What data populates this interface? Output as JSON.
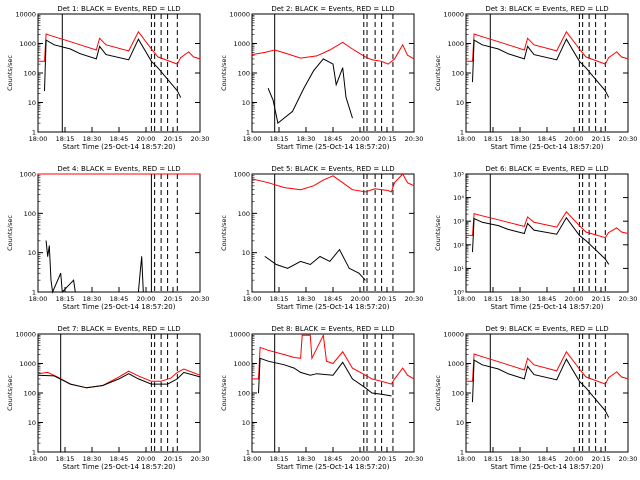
{
  "chart_data": [
    {
      "type": "line",
      "title": "Det 1: BLACK = Events, RED = LLD",
      "xlabel": "Start Time (25-Oct-14 18:57:20)",
      "ylabel": "Counts/sec",
      "yscale": "log",
      "ylim": [
        1,
        10000
      ],
      "yticks": [
        1,
        10,
        100,
        1000,
        10000
      ],
      "yticklabels": [
        "1",
        "10",
        "100",
        "1000",
        "10000"
      ],
      "xticklabels": [
        "18:00",
        "18:15",
        "18:30",
        "18:45",
        "20:00",
        "20:15",
        "20:30"
      ],
      "series": [
        {
          "color": "#ff0000",
          "x": [
            0,
            4,
            5,
            10,
            20,
            26,
            36,
            38,
            42,
            56,
            62,
            70,
            74,
            86,
            88,
            93,
            96,
            100
          ],
          "y": [
            250,
            250,
            2100,
            1700,
            1150,
            900,
            600,
            1500,
            900,
            560,
            2500,
            650,
            350,
            200,
            330,
            520,
            350,
            300
          ]
        },
        {
          "color": "#000000",
          "x": [
            4,
            5,
            10,
            20,
            26,
            36,
            38,
            42,
            56,
            62,
            70,
            74,
            86,
            88
          ],
          "y": [
            25,
            1300,
            900,
            650,
            450,
            300,
            800,
            420,
            280,
            1400,
            250,
            150,
            25,
            15
          ]
        }
      ],
      "vlines": [
        15,
        70,
        72,
        76,
        80,
        86
      ]
    },
    {
      "type": "line",
      "title": "Det 2: BLACK = Events, RED = LLD",
      "xlabel": "Start Time (25-Oct-14 18:57:20)",
      "ylabel": "Counts/sec",
      "yscale": "log",
      "ylim": [
        1,
        10000
      ],
      "yticks": [
        1,
        10,
        100,
        1000,
        10000
      ],
      "yticklabels": [
        "1",
        "10",
        "100",
        "1000",
        "10000"
      ],
      "xticklabels": [
        "18:00",
        "18:15",
        "18:30",
        "18:45",
        "20:00",
        "20:15",
        "20:30"
      ],
      "series": [
        {
          "color": "#ff0000",
          "x": [
            0,
            8,
            14,
            20,
            30,
            40,
            48,
            56,
            62,
            70,
            74,
            80,
            84,
            88,
            93,
            96,
            100
          ],
          "y": [
            420,
            500,
            600,
            480,
            320,
            380,
            600,
            1100,
            650,
            350,
            280,
            250,
            200,
            300,
            900,
            400,
            300
          ]
        },
        {
          "color": "#000000",
          "x": [
            10,
            13,
            16,
            25,
            32,
            38,
            44,
            50,
            52,
            56,
            58,
            62
          ],
          "y": [
            30,
            12,
            2,
            5,
            30,
            120,
            300,
            200,
            40,
            150,
            15,
            3
          ]
        }
      ],
      "vlines": [
        14,
        69,
        71,
        76,
        80,
        87
      ]
    },
    {
      "type": "line",
      "title": "Det 3: BLACK = Events, RED = LLD",
      "xlabel": "Start Time (25-Oct-14 18:57:20)",
      "ylabel": "Counts/sec",
      "yscale": "log",
      "ylim": [
        1,
        10000
      ],
      "yticks": [
        1,
        10,
        100,
        1000,
        10000
      ],
      "yticklabels": [
        "1",
        "10",
        "100",
        "1000",
        "10000"
      ],
      "xticklabels": [
        "18:00",
        "18:15",
        "18:30",
        "18:45",
        "20:00",
        "20:15",
        "20:30"
      ],
      "series": [
        {
          "color": "#ff0000",
          "x": [
            0,
            4,
            5,
            10,
            20,
            26,
            36,
            38,
            42,
            56,
            62,
            70,
            74,
            86,
            88,
            93,
            96,
            100
          ],
          "y": [
            250,
            250,
            2100,
            1700,
            1150,
            900,
            600,
            1500,
            900,
            560,
            2500,
            650,
            350,
            200,
            330,
            520,
            350,
            300
          ]
        },
        {
          "color": "#000000",
          "x": [
            4,
            5,
            10,
            20,
            26,
            36,
            38,
            42,
            56,
            62,
            70,
            74,
            86,
            88
          ],
          "y": [
            50,
            1300,
            900,
            650,
            450,
            300,
            800,
            420,
            280,
            1400,
            250,
            150,
            25,
            15
          ]
        }
      ],
      "vlines": [
        15,
        70,
        72,
        76,
        80,
        86
      ]
    },
    {
      "type": "line",
      "title": "Det 4: BLACK = Events, RED = LLD",
      "xlabel": "Start Time (25-Oct-14 18:57:20)",
      "ylabel": "Counts/sec",
      "yscale": "log",
      "ylim": [
        1,
        1000
      ],
      "yticks": [
        1,
        10,
        100,
        1000
      ],
      "yticklabels": [
        "1",
        "10",
        "100",
        "1000"
      ],
      "xticklabels": [
        "18:00",
        "18:15",
        "18:30",
        "18:45",
        "20:00",
        "20:15",
        "20:30"
      ],
      "series": [
        {
          "color": "#ff0000",
          "x": [
            0,
            100
          ],
          "y": [
            1000,
            1000
          ]
        },
        {
          "color": "#000000",
          "x": [
            5,
            6,
            7,
            8,
            9,
            14,
            15,
            22,
            23,
            62,
            63,
            64,
            65
          ],
          "y": [
            20,
            8,
            15,
            2,
            1,
            3,
            1,
            2,
            1,
            1,
            3,
            8,
            1
          ]
        }
      ],
      "vlines": [
        70,
        72,
        76,
        80,
        86
      ]
    },
    {
      "type": "line",
      "title": "Det 5: BLACK = Events, RED = LLD",
      "xlabel": "Start Time (25-Oct-14 18:57:20)",
      "ylabel": "Counts/sec",
      "yscale": "log",
      "ylim": [
        1,
        1000
      ],
      "yticks": [
        1,
        10,
        100,
        1000
      ],
      "yticklabels": [
        "1",
        "10",
        "100",
        "1000"
      ],
      "xticklabels": [
        "18:00",
        "18:15",
        "18:30",
        "18:45",
        "20:00",
        "20:15",
        "20:30"
      ],
      "series": [
        {
          "color": "#ff0000",
          "x": [
            0,
            10,
            20,
            30,
            38,
            44,
            50,
            56,
            62,
            70,
            76,
            84,
            86,
            88,
            93,
            96,
            100
          ],
          "y": [
            750,
            600,
            450,
            400,
            500,
            700,
            900,
            600,
            400,
            350,
            420,
            380,
            350,
            600,
            1000,
            600,
            500
          ]
        },
        {
          "color": "#000000",
          "x": [
            8,
            15,
            22,
            30,
            36,
            42,
            48,
            54,
            60,
            66,
            70
          ],
          "y": [
            8,
            5,
            4,
            6,
            5,
            8,
            6,
            12,
            4,
            3,
            2
          ]
        }
      ],
      "vlines": [
        14,
        69,
        71,
        76,
        80,
        87
      ]
    },
    {
      "type": "line",
      "title": "Det 6: BLACK = Events, RED = LLD",
      "xlabel": "Start Time (25-Oct-14 18:57:20)",
      "ylabel": "Counts/sec",
      "yscale": "log",
      "ylim": [
        1,
        100000
      ],
      "yticks": [
        1,
        10,
        100,
        1000,
        10000,
        100000
      ],
      "yticklabels": [
        "10⁰",
        "10¹",
        "10²",
        "10³",
        "10⁴",
        "10⁵"
      ],
      "xticklabels": [
        "18:00",
        "18:15",
        "18:30",
        "18:45",
        "20:00",
        "20:15",
        "20:30"
      ],
      "series": [
        {
          "color": "#ff0000",
          "x": [
            0,
            4,
            5,
            10,
            20,
            26,
            36,
            38,
            42,
            56,
            62,
            70,
            74,
            86,
            88,
            93,
            96,
            100
          ],
          "y": [
            250,
            250,
            2100,
            1700,
            1150,
            900,
            600,
            1500,
            900,
            560,
            2500,
            650,
            350,
            200,
            330,
            520,
            350,
            300
          ]
        },
        {
          "color": "#000000",
          "x": [
            4,
            5,
            10,
            20,
            26,
            36,
            38,
            42,
            56,
            62,
            70,
            74,
            86,
            88
          ],
          "y": [
            50,
            1300,
            900,
            650,
            450,
            300,
            800,
            420,
            280,
            1400,
            250,
            150,
            25,
            15
          ]
        }
      ],
      "vlines": [
        15,
        70,
        72,
        76,
        80,
        86
      ]
    },
    {
      "type": "line",
      "title": "Det 7: BLACK = Events, RED = LLD",
      "xlabel": "Start Time (25-Oct-14 18:57:20)",
      "ylabel": "Counts/sec",
      "yscale": "log",
      "ylim": [
        1,
        10000
      ],
      "yticks": [
        1,
        10,
        100,
        1000,
        10000
      ],
      "yticklabels": [
        "1",
        "10",
        "100",
        "1000",
        "10000"
      ],
      "xticklabels": [
        "18:00",
        "18:15",
        "18:30",
        "18:45",
        "20:00",
        "20:15",
        "20:30"
      ],
      "series": [
        {
          "color": "#ff0000",
          "x": [
            0,
            6,
            12,
            20,
            30,
            40,
            50,
            56,
            62,
            70,
            76,
            82,
            86,
            90,
            100
          ],
          "y": [
            450,
            500,
            350,
            200,
            150,
            180,
            350,
            550,
            380,
            250,
            250,
            320,
            500,
            650,
            400
          ]
        },
        {
          "color": "#000000",
          "x": [
            0,
            10,
            20,
            30,
            40,
            50,
            56,
            62,
            70,
            80,
            86,
            90,
            100
          ],
          "y": [
            400,
            380,
            200,
            150,
            180,
            300,
            450,
            300,
            200,
            200,
            300,
            500,
            350
          ]
        }
      ],
      "vlines": [
        14,
        70,
        72,
        76,
        80,
        86
      ]
    },
    {
      "type": "line",
      "title": "Det 8: BLACK = Events, RED = LLD",
      "xlabel": "Start Time (25-Oct-14 18:57:20)",
      "ylabel": "Counts/sec",
      "yscale": "log",
      "ylim": [
        1,
        10000
      ],
      "yticks": [
        1,
        10,
        100,
        1000,
        10000
      ],
      "yticklabels": [
        "1",
        "10",
        "100",
        "1000",
        "10000"
      ],
      "xticklabels": [
        "18:00",
        "18:15",
        "18:30",
        "18:45",
        "20:00",
        "20:15",
        "20:30"
      ],
      "series": [
        {
          "color": "#ff0000",
          "x": [
            0,
            4,
            5,
            10,
            20,
            26,
            30,
            31,
            36,
            37,
            44,
            46,
            50,
            56,
            62,
            70,
            74,
            80,
            86,
            88,
            93,
            96,
            100
          ],
          "y": [
            300,
            300,
            3500,
            2800,
            2000,
            1600,
            1500,
            9000,
            9000,
            1500,
            9000,
            1200,
            1000,
            2500,
            700,
            400,
            300,
            250,
            200,
            300,
            700,
            400,
            300
          ]
        },
        {
          "color": "#000000",
          "x": [
            4,
            5,
            10,
            20,
            26,
            30,
            36,
            40,
            50,
            56,
            62,
            70,
            74,
            80,
            86
          ],
          "y": [
            100,
            1500,
            1200,
            900,
            700,
            500,
            400,
            450,
            400,
            1100,
            300,
            150,
            100,
            90,
            80
          ]
        }
      ],
      "vlines": [
        14,
        69,
        71,
        76,
        80,
        87
      ]
    },
    {
      "type": "line",
      "title": "Det 9: BLACK = Events, RED = LLD",
      "xlabel": "Start Time (25-Oct-14 18:57:20)",
      "ylabel": "Counts/sec",
      "yscale": "log",
      "ylim": [
        1,
        10000
      ],
      "yticks": [
        1,
        10,
        100,
        1000,
        10000
      ],
      "yticklabels": [
        "1",
        "10",
        "100",
        "1000",
        "10000"
      ],
      "xticklabels": [
        "18:00",
        "18:15",
        "18:30",
        "18:45",
        "20:00",
        "20:15",
        "20:30"
      ],
      "series": [
        {
          "color": "#ff0000",
          "x": [
            0,
            4,
            5,
            10,
            20,
            26,
            36,
            38,
            42,
            56,
            62,
            70,
            74,
            86,
            88,
            93,
            96,
            100
          ],
          "y": [
            250,
            250,
            2100,
            1700,
            1150,
            900,
            600,
            1500,
            900,
            560,
            2500,
            650,
            350,
            200,
            330,
            520,
            350,
            300
          ]
        },
        {
          "color": "#000000",
          "x": [
            4,
            5,
            10,
            20,
            26,
            36,
            38,
            42,
            56,
            62,
            70,
            74,
            86,
            88
          ],
          "y": [
            50,
            1300,
            900,
            650,
            450,
            300,
            800,
            420,
            280,
            1400,
            250,
            150,
            25,
            15
          ]
        }
      ],
      "vlines": [
        15,
        70,
        72,
        76,
        80,
        86
      ]
    }
  ]
}
